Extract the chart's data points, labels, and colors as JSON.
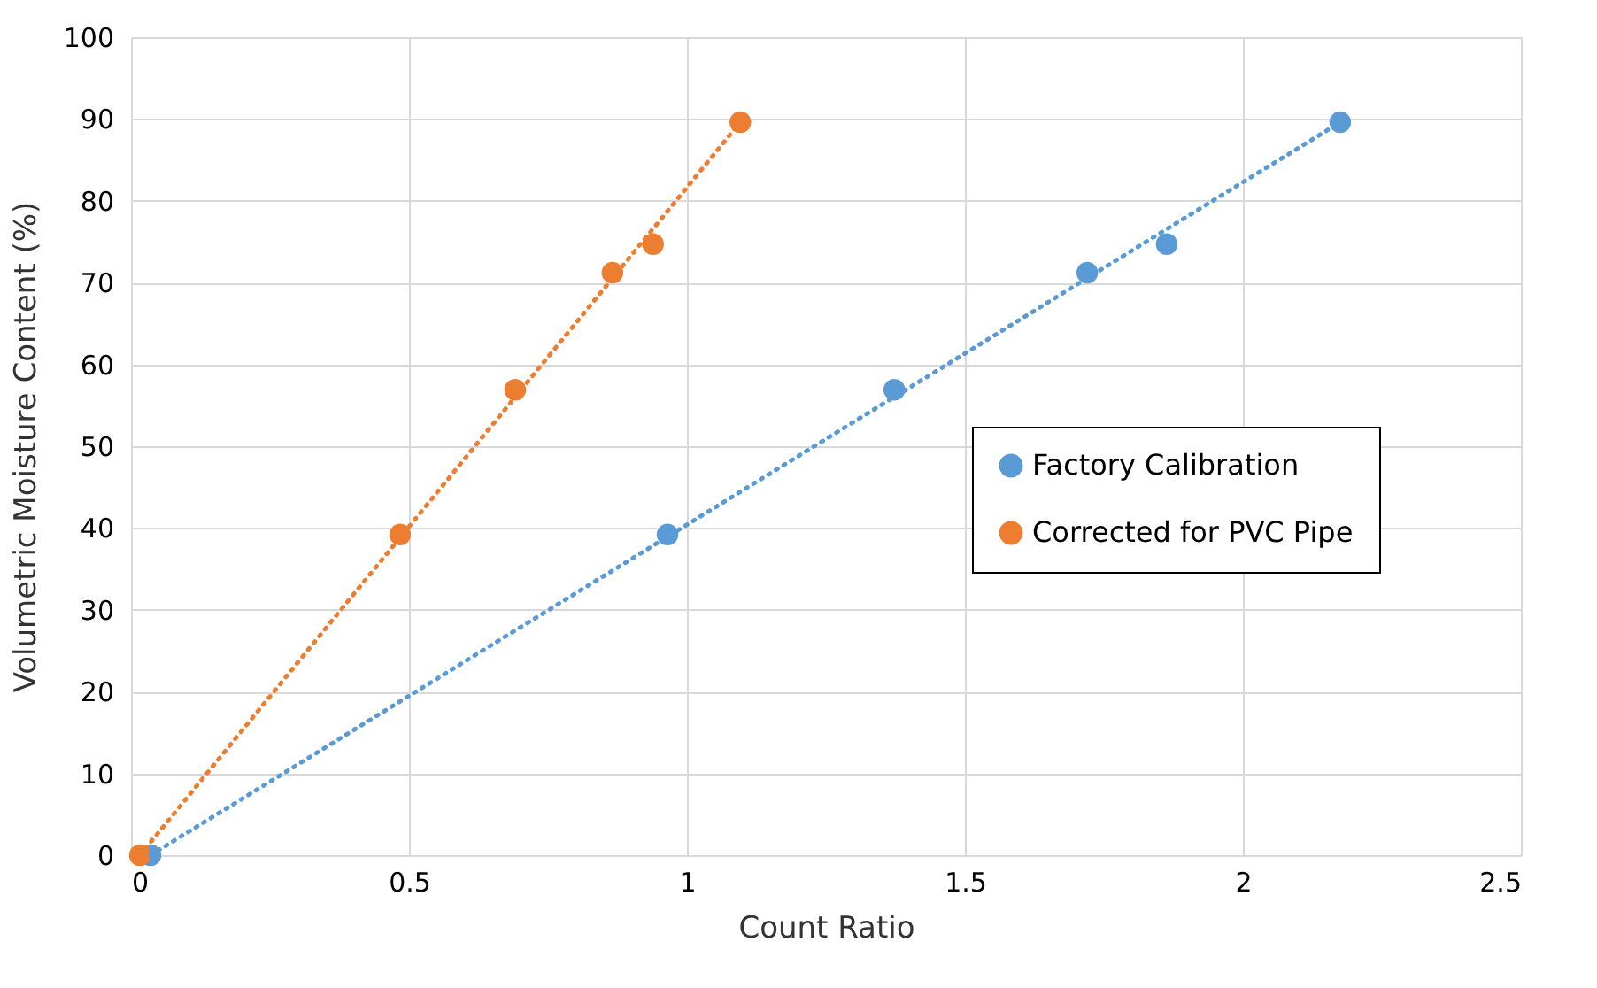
{
  "chart_data": {
    "type": "scatter",
    "xlabel": "Count Ratio",
    "ylabel": "Volumetric Moisture Content (%)",
    "xlim": [
      0,
      2.5
    ],
    "xticks": [
      0,
      0.5,
      1,
      1.5,
      2,
      2.5
    ],
    "ylim": [
      0,
      100
    ],
    "yticks": [
      0,
      10,
      20,
      30,
      40,
      50,
      60,
      70,
      80,
      90,
      100
    ],
    "grid": true,
    "legend": "right",
    "marker": "circle",
    "series": [
      {
        "name": "Factory Calibration",
        "color": "#5b9bd5",
        "x": [
          0.035,
          0.965,
          1.373,
          1.72,
          1.863,
          2.175
        ],
        "values": [
          0,
          39.2,
          56.9,
          71.2,
          74.7,
          89.6
        ]
      },
      {
        "name": "Corrected for PVC Pipe",
        "color": "#ed7d31",
        "x": [
          0.016,
          0.484,
          0.691,
          0.866,
          0.939,
          1.096
        ],
        "values": [
          0,
          39.2,
          56.9,
          71.2,
          74.7,
          89.6
        ]
      },
      {
        "type": "line",
        "color": "#5b9bd5",
        "line_style": "dotted",
        "marker": "none",
        "x": [
          0.035,
          2.175
        ],
        "values": [
          0,
          89.6
        ]
      },
      {
        "type": "line",
        "color": "#ed7d31",
        "line_style": "dotted",
        "marker": "none",
        "x": [
          0.016,
          1.096
        ],
        "values": [
          0,
          89.6
        ]
      }
    ]
  }
}
